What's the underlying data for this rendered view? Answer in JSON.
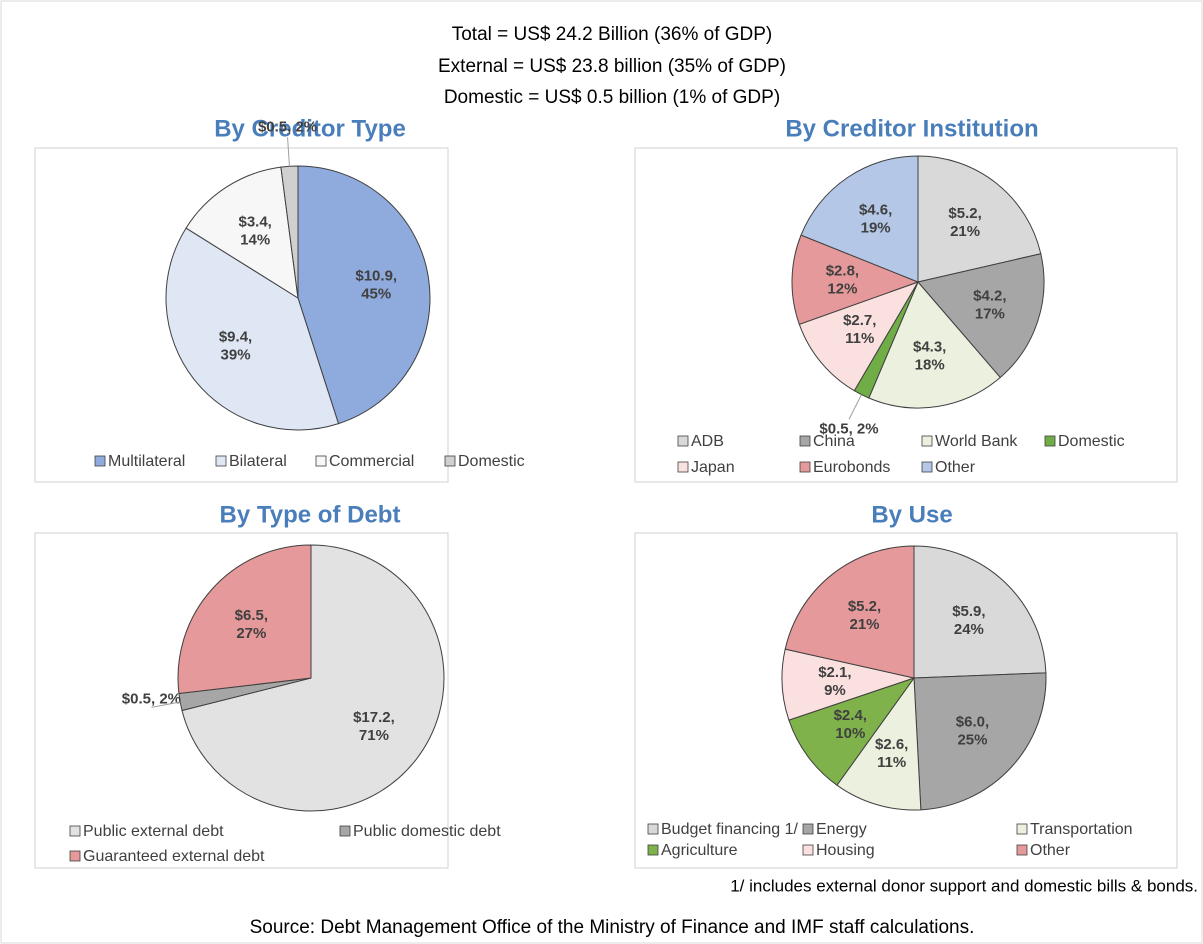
{
  "header": {
    "lines": [
      "Total = US$ 24.2 Billion (36% of GDP)",
      "External = US$ 23.8 billion (35% of GDP)",
      "Domestic = US$ 0.5 billion (1% of GDP)"
    ]
  },
  "footnote": "1/ includes external donor support and domestic bills & bonds.",
  "source": "Source: Debt Management Office of the Ministry of Finance and IMF staff calculations.",
  "chart_data": [
    {
      "type": "pie",
      "title": "By Creditor Type",
      "categories": [
        "Multilateral",
        "Bilateral",
        "Commercial",
        "Domestic"
      ],
      "values": [
        10.9,
        9.4,
        3.4,
        0.5
      ],
      "value_labels": [
        "$10.9, 45%",
        "$9.4, 39%",
        "$3.4, 14%",
        "$0.5, 2%"
      ],
      "colors": [
        "#8faadc",
        "#dfe7f5",
        "#f7f7f7",
        "#d0d0d0"
      ]
    },
    {
      "type": "pie",
      "title": "By Creditor Institution",
      "categories": [
        "ADB",
        "China",
        "World Bank",
        "Domestic",
        "Japan",
        "Eurobonds",
        "Other"
      ],
      "values": [
        5.2,
        4.2,
        4.3,
        0.5,
        2.7,
        2.8,
        4.6
      ],
      "value_labels": [
        "$5.2, 21%",
        "$4.2, 17%",
        "$4.3, 18%",
        "$0.5, 2%",
        "$2.7, 11%",
        "$2.8, 12%",
        "$4.6, 19%"
      ],
      "colors": [
        "#d9d9d9",
        "#a6a6a6",
        "#ebf1de",
        "#70ad47",
        "#fbe0e0",
        "#e6999a",
        "#b4c7e7"
      ]
    },
    {
      "type": "pie",
      "title": "By Type of Debt",
      "categories": [
        "Public external debt",
        "Public domestic debt",
        "Guaranteed external debt"
      ],
      "values": [
        17.2,
        0.5,
        6.5
      ],
      "value_labels": [
        "$17.2, 71%",
        "$0.5, 2%",
        "$6.5, 27%"
      ],
      "colors": [
        "#e2e2e2",
        "#a6a6a6",
        "#e6999a"
      ]
    },
    {
      "type": "pie",
      "title": "By Use",
      "categories": [
        "Budget financing 1/",
        "Energy",
        "Transportation",
        "Agriculture",
        "Housing",
        "Other"
      ],
      "values": [
        5.9,
        6.0,
        2.6,
        2.4,
        2.1,
        5.2
      ],
      "value_labels": [
        "$5.9, 24%",
        "$6.0, 25%",
        "$2.6, 11%",
        "$2.4, 10%",
        "$2.1, 9%",
        "$5.2, 21%"
      ],
      "colors": [
        "#d9d9d9",
        "#a6a6a6",
        "#ebf1de",
        "#7fb24a",
        "#fbe0e0",
        "#e6999a"
      ]
    }
  ]
}
